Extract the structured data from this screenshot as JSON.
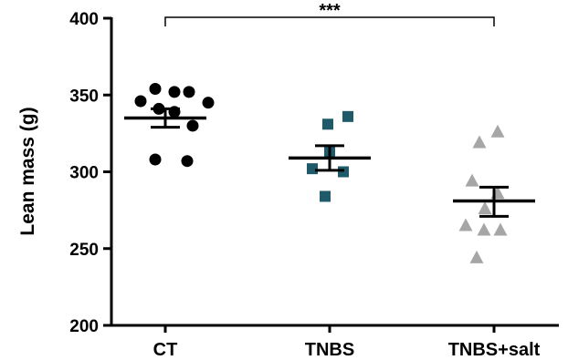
{
  "chart_data": {
    "type": "scatter",
    "ylabel": "Lean mass (g)",
    "xlabel": "",
    "ylim": [
      200,
      400
    ],
    "yticks": [
      200,
      250,
      300,
      350,
      400
    ],
    "grid": false,
    "categories": [
      "CT",
      "TNBS",
      "TNBS+salt"
    ],
    "groups": [
      {
        "category": "CT",
        "marker": "circle",
        "color": "#000000",
        "points": [
          354,
          352,
          352,
          346,
          345,
          341,
          339,
          330,
          308,
          307
        ],
        "mean": 335,
        "sem_upper": 341,
        "sem_lower": 329
      },
      {
        "category": "TNBS",
        "marker": "square",
        "color": "#1f5a6a",
        "points": [
          336,
          331,
          313,
          302,
          300,
          284
        ],
        "mean": 309,
        "sem_upper": 317,
        "sem_lower": 301
      },
      {
        "category": "TNBS+salt",
        "marker": "triangle",
        "color": "#a6a6a6",
        "points": [
          326,
          319,
          294,
          286,
          276,
          265,
          262,
          262,
          244
        ],
        "mean": 281,
        "sem_upper": 290,
        "sem_lower": 271
      }
    ],
    "significance": {
      "from": "CT",
      "to": "TNBS+salt",
      "label": "***"
    }
  }
}
